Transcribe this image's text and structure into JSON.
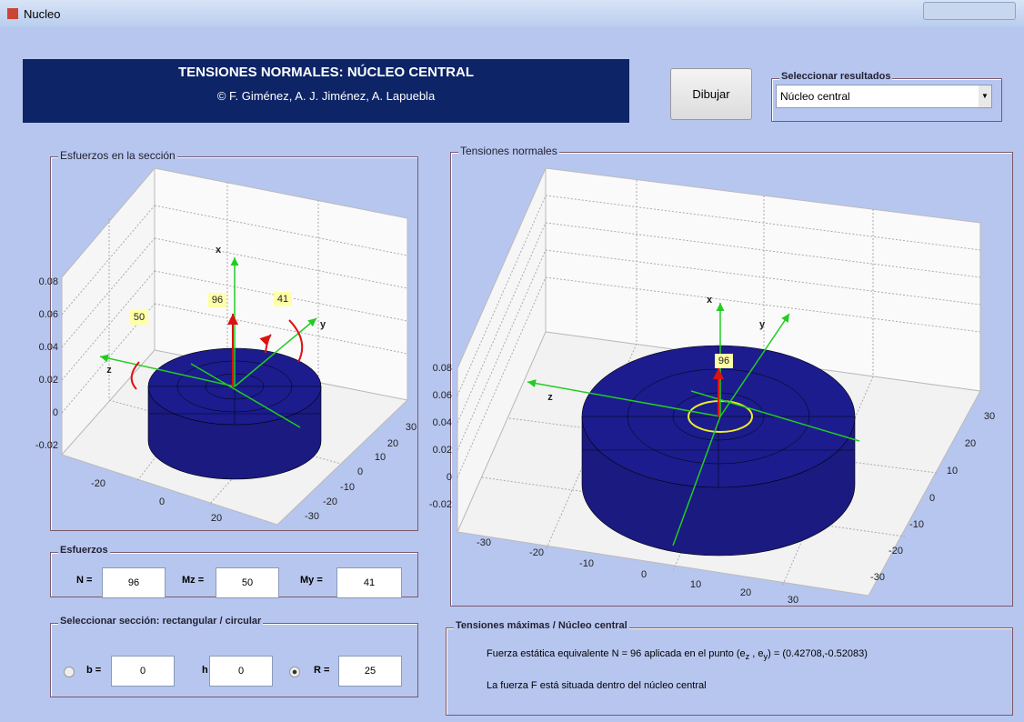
{
  "window": {
    "title": "Nucleo"
  },
  "header": {
    "title": "TENSIONES NORMALES:  NÚCLEO CENTRAL",
    "credits": "© F. Giménez, A. J. Jiménez, A. Lapuebla"
  },
  "button": "Dibujar",
  "results_selector": {
    "label": "Seleccionar resultados",
    "value": "Núcleo central"
  },
  "section_plot": {
    "title": "Esfuerzos en la sección",
    "vertical_ticks": [
      "0.08",
      "0.06",
      "0.04",
      "0.02",
      "0",
      "-0.02"
    ],
    "x_ticks": [
      "-20",
      "0",
      "20"
    ],
    "y_ticks": [
      "30",
      "20",
      "10",
      "0",
      "-10",
      "-20",
      "-30"
    ],
    "axis_labels": [
      "x",
      "y",
      "z"
    ],
    "value_labels": [
      "96",
      "41",
      "50"
    ]
  },
  "stress_plot": {
    "title": "Tensiones normales",
    "vertical_ticks": [
      "0.08",
      "0.06",
      "0.04",
      "0.02",
      "0",
      "-0.02"
    ],
    "x_ticks": [
      "-30",
      "-20",
      "-10",
      "0",
      "10",
      "20",
      "30"
    ],
    "y_ticks": [
      "30",
      "20",
      "10",
      "0",
      "-10",
      "-20",
      "-30"
    ],
    "axis_labels": [
      "x",
      "y",
      "z"
    ],
    "value_labels": [
      "96"
    ]
  },
  "forces": {
    "title": "Esfuerzos",
    "fields": [
      {
        "label": "N =",
        "value": "96"
      },
      {
        "label": "Mz =",
        "value": "50"
      },
      {
        "label": "My =",
        "value": "41"
      }
    ]
  },
  "section": {
    "title": "Seleccionar sección:  rectangular / circular",
    "fields": [
      {
        "label": "b =",
        "value": "0"
      },
      {
        "label": "h =",
        "value": "0"
      },
      {
        "label": "R =",
        "value": "25"
      }
    ]
  },
  "results": {
    "title": "Tensiones máximas / Núcleo central",
    "line1_prefix": "Fuerza estática equivalente  N = 96  aplicada en el punto (e",
    "sub_z": "z",
    "mid": " , e",
    "sub_y": "y",
    "line1_suffix": ") = (0.42708,-0.52083)",
    "line2": "La fuerza F está situada dentro del núcleo central"
  }
}
